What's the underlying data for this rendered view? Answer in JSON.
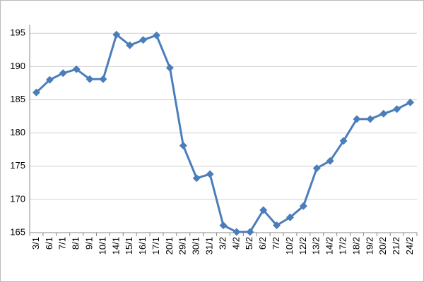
{
  "chart_data": {
    "type": "line",
    "categories": [
      "3/1",
      "6/1",
      "7/1",
      "8/1",
      "9/1",
      "10/1",
      "14/1",
      "15/1",
      "16/1",
      "17/1",
      "20/1",
      "29/1",
      "30/1",
      "31/1",
      "3/2",
      "4/2",
      "5/2",
      "6/2",
      "7/2",
      "10/2",
      "12/2",
      "13/2",
      "14/2",
      "17/2",
      "18/2",
      "19/2",
      "20/2",
      "21/2",
      "24/2"
    ],
    "series": [
      {
        "color": "#4a7ebb",
        "values": [
          186.1,
          188,
          189,
          189.6,
          188.1,
          188.1,
          194.8,
          193.2,
          194,
          194.7,
          189.8,
          178.1,
          173.2,
          173.8,
          166.1,
          165.1,
          165.1,
          168.4,
          166.1,
          167.3,
          169,
          174.7,
          175.8,
          178.8,
          182.1,
          182.1,
          182.9,
          183.6,
          184.6
        ]
      }
    ],
    "ylim": [
      165,
      196.3
    ],
    "yticks": [
      165,
      170,
      175,
      180,
      185,
      190,
      195
    ],
    "grid": true
  }
}
